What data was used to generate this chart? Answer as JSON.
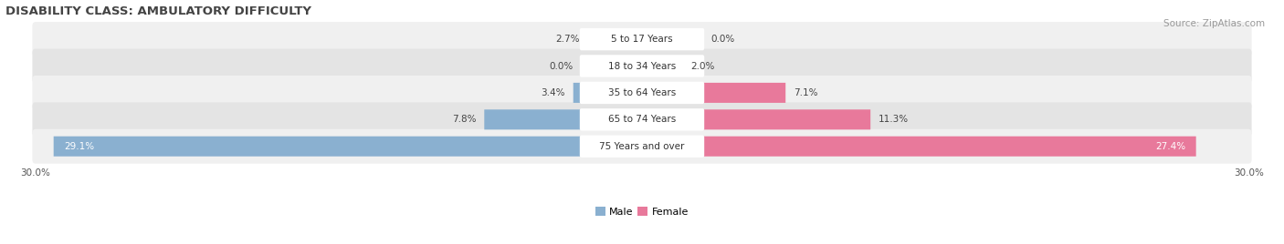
{
  "title": "DISABILITY CLASS: AMBULATORY DIFFICULTY",
  "source": "Source: ZipAtlas.com",
  "categories": [
    "5 to 17 Years",
    "18 to 34 Years",
    "35 to 64 Years",
    "65 to 74 Years",
    "75 Years and over"
  ],
  "male_values": [
    2.7,
    0.0,
    3.4,
    7.8,
    29.1
  ],
  "female_values": [
    0.0,
    2.0,
    7.1,
    11.3,
    27.4
  ],
  "max_val": 30.0,
  "male_color": "#8ab0d0",
  "female_color": "#e8799b",
  "row_bg_odd": "#f0f0f0",
  "row_bg_even": "#e4e4e4",
  "label_bg_color": "#ffffff",
  "title_fontsize": 9.5,
  "source_fontsize": 7.5,
  "value_fontsize": 7.5,
  "cat_fontsize": 7.5,
  "axis_label_fontsize": 7.5,
  "legend_fontsize": 8,
  "x_axis_label_left": "30.0%",
  "x_axis_label_right": "30.0%"
}
